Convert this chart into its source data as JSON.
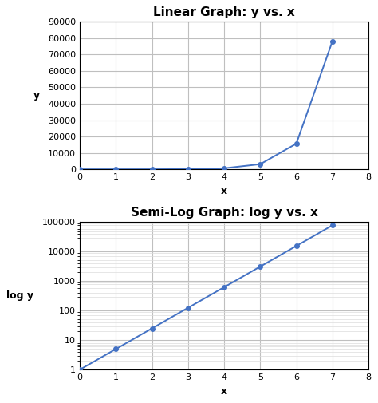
{
  "x": [
    0,
    1,
    2,
    3,
    4,
    5,
    6,
    7
  ],
  "y": [
    1,
    5,
    25,
    125,
    625,
    3125,
    15625,
    78125
  ],
  "title_linear": "Linear Graph: y vs. x",
  "title_semilog": "Semi-Log Graph: log y vs. x",
  "xlabel": "x",
  "ylabel_linear": "y",
  "ylabel_semilog": "log y",
  "line_color": "#4472C4",
  "marker": "o",
  "marker_size": 4,
  "bg_color": "#FFFFFF",
  "grid_major_color": "#BFBFBF",
  "grid_minor_color": "#DCDCDC",
  "xlim": [
    0,
    8
  ],
  "ylim_linear": [
    0,
    90000
  ],
  "yticks_linear": [
    0,
    10000,
    20000,
    30000,
    40000,
    50000,
    60000,
    70000,
    80000,
    90000
  ],
  "ylim_log": [
    1,
    100000
  ],
  "title_fontsize": 11,
  "label_fontsize": 9,
  "tick_fontsize": 8,
  "xticks": [
    0,
    1,
    2,
    3,
    4,
    5,
    6,
    7,
    8
  ]
}
